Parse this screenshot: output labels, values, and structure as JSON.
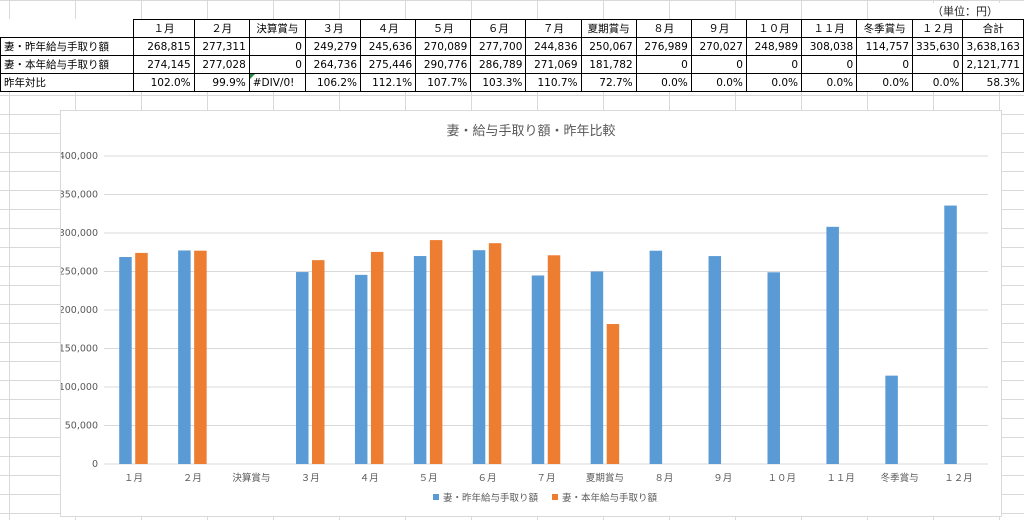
{
  "unit_label": "（単位：円）",
  "table": {
    "headers": [
      "",
      "１月",
      "２月",
      "決算賞与",
      "３月",
      "４月",
      "５月",
      "６月",
      "７月",
      "夏期賞与",
      "８月",
      "９月",
      "１０月",
      "１１月",
      "冬季賞与",
      "１２月",
      "合計"
    ],
    "rows": [
      {
        "label": "妻・昨年給与手取り額",
        "cells": [
          "268,815",
          "277,311",
          "0",
          "249,279",
          "245,636",
          "270,089",
          "277,700",
          "244,836",
          "250,067",
          "276,989",
          "270,027",
          "248,989",
          "308,038",
          "114,757",
          "335,630",
          "3,638,163"
        ]
      },
      {
        "label": "妻・本年給与手取り額",
        "cells": [
          "274,145",
          "277,028",
          "0",
          "264,736",
          "275,446",
          "290,776",
          "286,789",
          "271,069",
          "181,782",
          "0",
          "0",
          "0",
          "0",
          "0",
          "0",
          "2,121,771"
        ]
      },
      {
        "label": "昨年対比",
        "cells": [
          "102.0%",
          "99.9%",
          "#DIV/0!",
          "106.2%",
          "112.1%",
          "107.7%",
          "103.3%",
          "110.7%",
          "72.7%",
          "0.0%",
          "0.0%",
          "0.0%",
          "0.0%",
          "0.0%",
          "0.0%",
          "58.3%"
        ]
      }
    ]
  },
  "chart_data": {
    "type": "bar",
    "title": "妻・給与手取り額・昨年比較",
    "categories": [
      "１月",
      "２月",
      "決算賞与",
      "３月",
      "４月",
      "５月",
      "６月",
      "７月",
      "夏期賞与",
      "８月",
      "９月",
      "１０月",
      "１１月",
      "冬季賞与",
      "１２月"
    ],
    "series": [
      {
        "name": "妻・昨年給与手取り額",
        "color": "#5b9bd5",
        "values": [
          268815,
          277311,
          0,
          249279,
          245636,
          270089,
          277700,
          244836,
          250067,
          276989,
          270027,
          248989,
          308038,
          114757,
          335630
        ]
      },
      {
        "name": "妻・本年給与手取り額",
        "color": "#ed7d31",
        "values": [
          274145,
          277028,
          0,
          264736,
          275446,
          290776,
          286789,
          271069,
          181782,
          0,
          0,
          0,
          0,
          0,
          0
        ]
      }
    ],
    "ylim": [
      0,
      400000
    ],
    "yticks": [
      0,
      50000,
      100000,
      150000,
      200000,
      250000,
      300000,
      350000,
      400000
    ],
    "ytick_labels": [
      "0",
      "50,000",
      "100,000",
      "150,000",
      "200,000",
      "250,000",
      "300,000",
      "350,000",
      "400,000"
    ],
    "grid": true,
    "legend_position": "bottom",
    "xlabel": "",
    "ylabel": ""
  }
}
